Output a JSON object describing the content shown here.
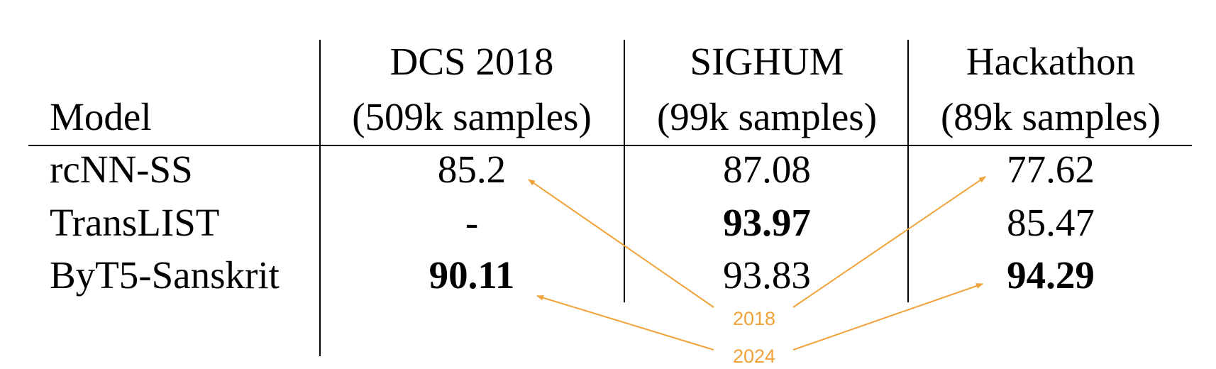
{
  "table": {
    "headers": {
      "model": "Model",
      "columns": [
        {
          "line1": "DCS 2018",
          "line2": "(509k samples)"
        },
        {
          "line1": "SIGHUM",
          "line2": "(99k samples)"
        },
        {
          "line1": "Hackathon",
          "line2": "(89k samples)"
        }
      ]
    },
    "rows": [
      {
        "model": "rcNN-SS",
        "values": [
          "85.2",
          "87.08",
          "77.62"
        ],
        "bold": [
          false,
          false,
          false
        ]
      },
      {
        "model": "TransLIST",
        "values": [
          "-",
          "93.97",
          "85.47"
        ],
        "bold": [
          false,
          true,
          false
        ]
      },
      {
        "model": "ByT5-Sanskrit",
        "values": [
          "90.11",
          "93.83",
          "94.29"
        ],
        "bold": [
          true,
          false,
          true
        ]
      }
    ]
  },
  "annotations": {
    "year_2018": "2018",
    "year_2024": "2024",
    "color": "#F0A33A"
  }
}
